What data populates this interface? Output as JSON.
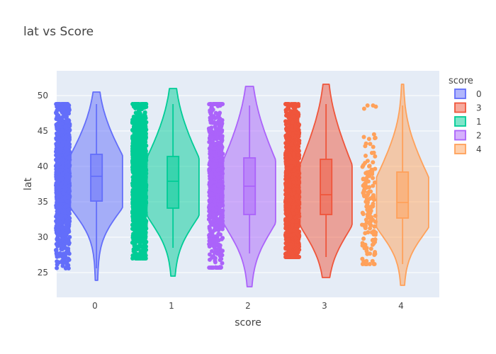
{
  "chart_data": {
    "type": "violin",
    "title": "lat vs Score",
    "xlabel": "score",
    "ylabel": "lat",
    "ylim": [
      21.5,
      53.5
    ],
    "yticks": [
      25,
      30,
      35,
      40,
      45,
      50
    ],
    "categories": [
      "0",
      "1",
      "2",
      "3",
      "4"
    ],
    "legend": {
      "title": "score",
      "placement": "right"
    },
    "grid": true,
    "background": "#e5ecf6",
    "series": [
      {
        "name": "0",
        "x": "0",
        "color": "#636efa",
        "min": 23.9,
        "max": 50.5,
        "q1": 35.1,
        "median": 38.6,
        "q3": 41.7,
        "whisker_low": 25.6,
        "whisker_high": 48.8,
        "points_min": 25.6,
        "points_max": 48.8,
        "density": "dense"
      },
      {
        "name": "3",
        "x": "3",
        "color": "#ef553b",
        "min": 24.3,
        "max": 51.6,
        "q1": 33.2,
        "median": 36.0,
        "q3": 41.0,
        "whisker_low": 27.2,
        "whisker_high": 48.8,
        "points_min": 27.2,
        "points_max": 48.8,
        "density": "dense"
      },
      {
        "name": "1",
        "x": "1",
        "color": "#00cc96",
        "min": 24.5,
        "max": 51.0,
        "q1": 34.1,
        "median": 37.9,
        "q3": 41.4,
        "whisker_low": 28.5,
        "whisker_high": 48.8,
        "points_min": 27.0,
        "points_max": 48.8,
        "density": "dense"
      },
      {
        "name": "2",
        "x": "2",
        "color": "#ab63fa",
        "min": 23.0,
        "max": 51.3,
        "q1": 33.2,
        "median": 37.2,
        "q3": 41.2,
        "whisker_low": 27.7,
        "whisker_high": 48.6,
        "points_min": 25.7,
        "points_max": 48.8,
        "density": "medium"
      },
      {
        "name": "4",
        "x": "4",
        "color": "#ffa15a",
        "min": 23.2,
        "max": 51.6,
        "q1": 32.7,
        "median": 34.9,
        "q3": 39.2,
        "whisker_low": 26.2,
        "whisker_high": 48.6,
        "points_min": 26.2,
        "points_max": 48.6,
        "density": "sparse"
      }
    ]
  }
}
